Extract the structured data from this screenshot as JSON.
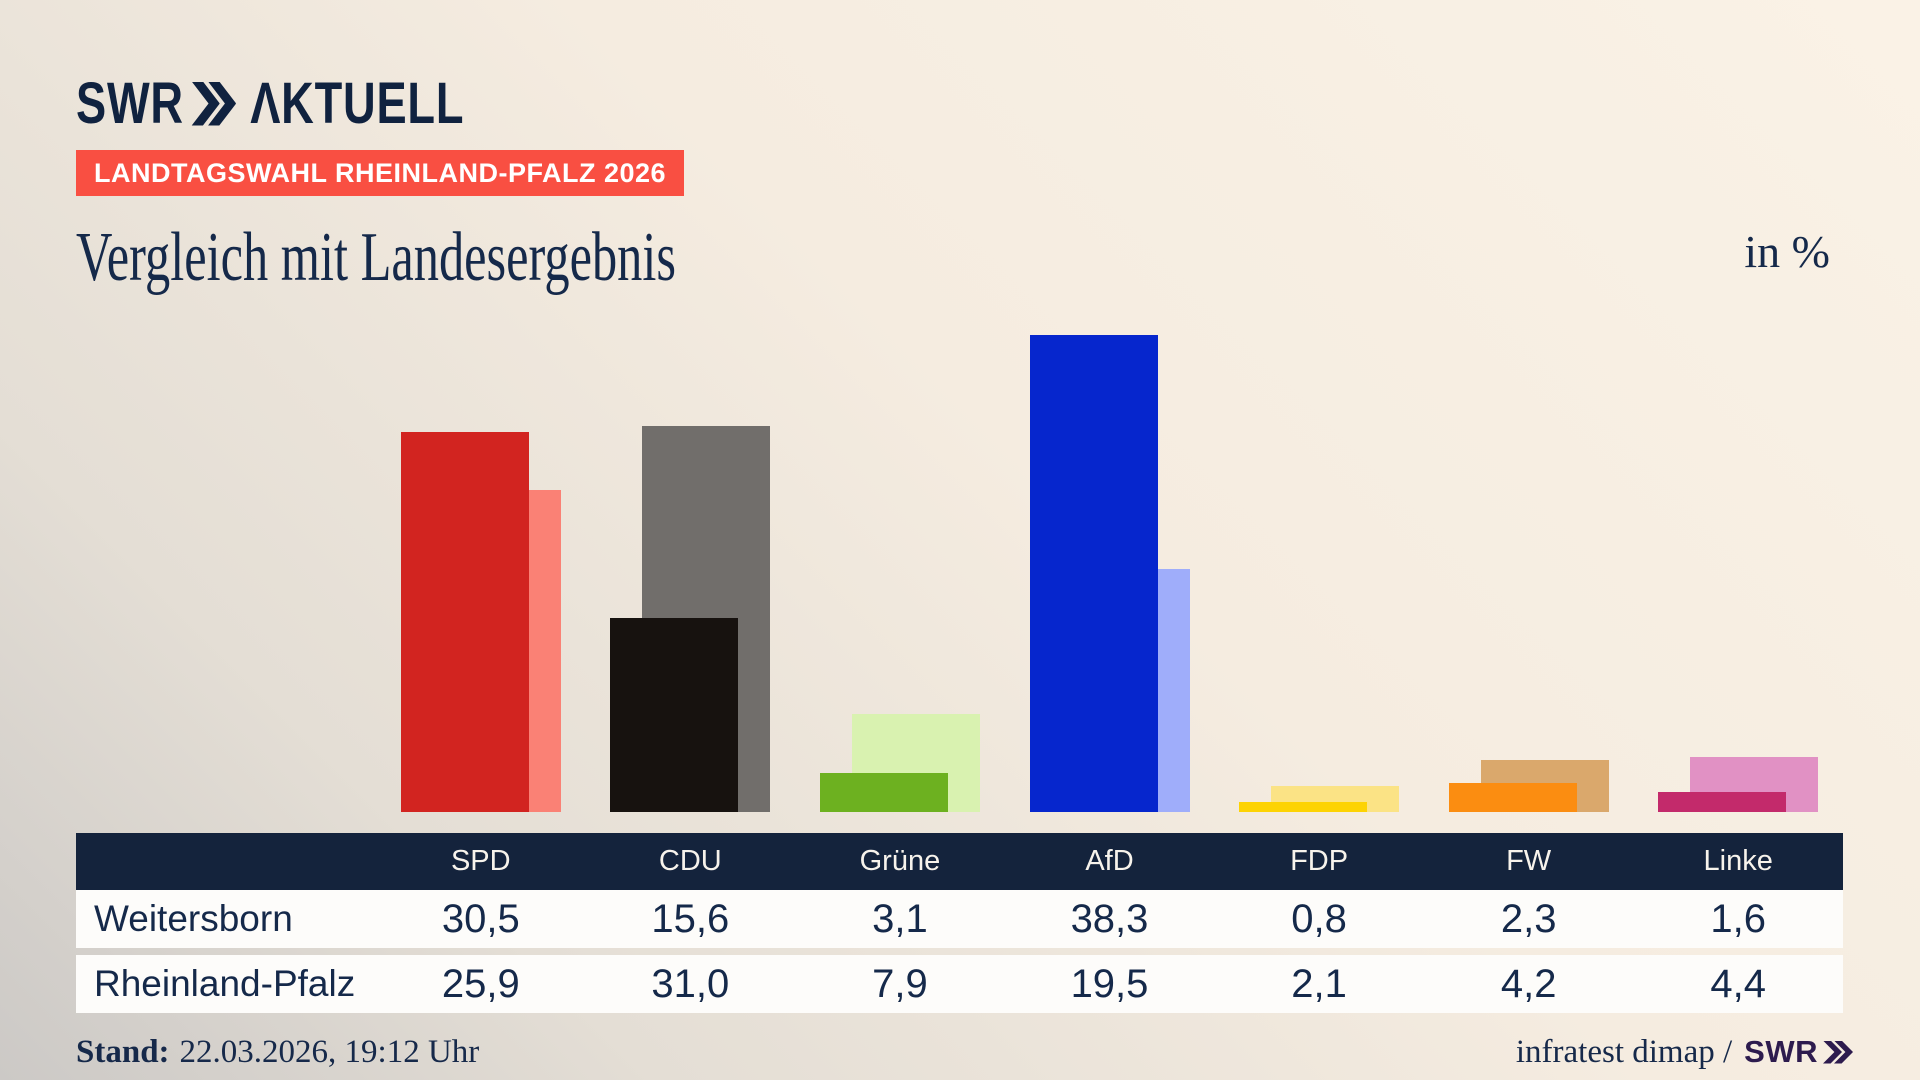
{
  "logo": {
    "brand": "SWR",
    "product": "AKTUELL"
  },
  "badge": {
    "label": "LANDTAGSWAHL RHEINLAND-PFALZ 2026",
    "color": "#f94f42"
  },
  "title": "Vergleich mit Landesergebnis",
  "unit_label": "in %",
  "chart_data": {
    "type": "bar",
    "categories": [
      "SPD",
      "CDU",
      "Grüne",
      "AfD",
      "FDP",
      "FW",
      "Linke"
    ],
    "series": [
      {
        "name": "Weitersborn",
        "values": [
          30.5,
          15.6,
          3.1,
          38.3,
          0.8,
          2.3,
          1.6
        ]
      },
      {
        "name": "Rheinland-Pfalz",
        "values": [
          25.9,
          31.0,
          7.9,
          19.5,
          2.1,
          4.2,
          4.4
        ]
      }
    ],
    "colors": {
      "weitersborn": [
        "#d22420",
        "#17120f",
        "#6db120",
        "#0626cd",
        "#fdd303",
        "#fb8d11",
        "#c32a6b"
      ],
      "rheinland_pfalz": [
        "#fa8175",
        "#716e6b",
        "#d9f2b0",
        "#9fadfa",
        "#fbe385",
        "#daa86c",
        "#e191c4"
      ]
    },
    "ylabel": "in %",
    "ylim": [
      0,
      40
    ],
    "grid": false,
    "legend": "none (series identified via table rows)"
  },
  "table": {
    "party_headers": [
      "SPD",
      "CDU",
      "Grüne",
      "AfD",
      "FDP",
      "FW",
      "Linke"
    ],
    "rows": [
      {
        "label": "Weitersborn",
        "values": [
          "30,5",
          "15,6",
          "3,1",
          "38,3",
          "0,8",
          "2,3",
          "1,6"
        ]
      },
      {
        "label": "Rheinland-Pfalz",
        "values": [
          "25,9",
          "31,0",
          "7,9",
          "19,5",
          "2,1",
          "4,2",
          "4,4"
        ]
      }
    ]
  },
  "footer": {
    "stand_label": "Stand:",
    "stand_value": "22.03.2026, 19:12 Uhr",
    "source_text": "infratest dimap /",
    "source_brand": "SWR"
  }
}
